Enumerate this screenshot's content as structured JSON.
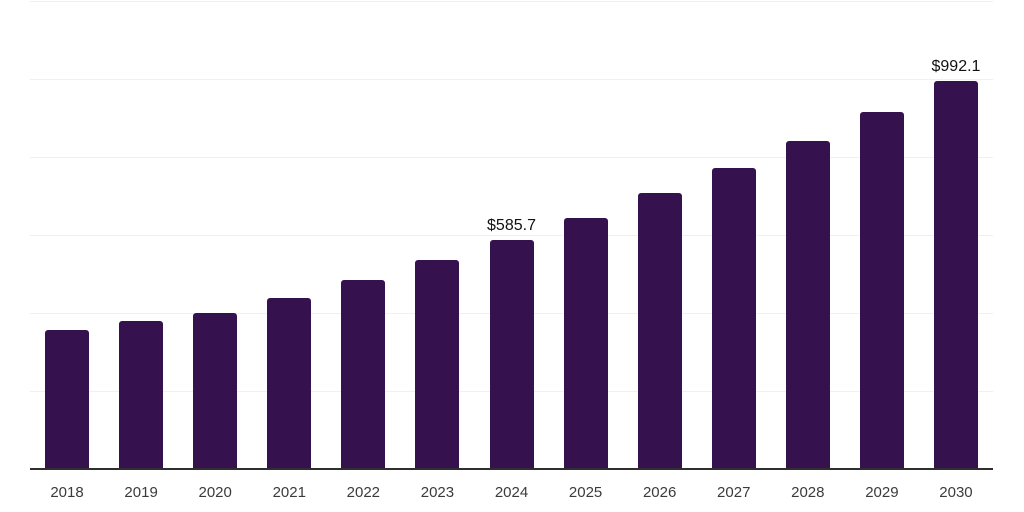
{
  "chart_data": {
    "type": "bar",
    "title": "",
    "xlabel": "",
    "ylabel": "",
    "categories": [
      "2018",
      "2019",
      "2020",
      "2021",
      "2022",
      "2023",
      "2024",
      "2025",
      "2026",
      "2027",
      "2028",
      "2029",
      "2030"
    ],
    "values": [
      353,
      377,
      398,
      437,
      481,
      534,
      585.7,
      642,
      706,
      770,
      839,
      913,
      992.1
    ],
    "data_labels": [
      null,
      null,
      null,
      null,
      null,
      null,
      "$585.7",
      null,
      null,
      null,
      null,
      null,
      "$992.1"
    ],
    "ylim": [
      0,
      1200
    ],
    "gridline_step": 200,
    "grid": true,
    "legend": false,
    "y_tick_labels_visible": false,
    "colors": {
      "bar": "#35124E",
      "axis": "#2f2f2f",
      "gridline": "#f0f0f0",
      "tick_label": "#3b3b3b",
      "data_label": "#111111",
      "background": "#ffffff"
    }
  }
}
